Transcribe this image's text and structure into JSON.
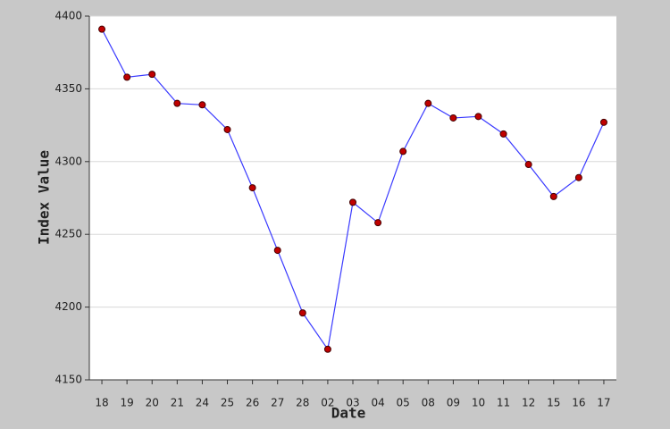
{
  "chart_data": {
    "type": "line",
    "x_label": "Date",
    "y_label": "Index Value",
    "categories": [
      "18",
      "19",
      "20",
      "21",
      "24",
      "25",
      "26",
      "27",
      "28",
      "02",
      "03",
      "04",
      "05",
      "08",
      "09",
      "10",
      "11",
      "12",
      "15",
      "16",
      "17"
    ],
    "values": [
      4391,
      4358,
      4360,
      4340,
      4339,
      4322,
      4282,
      4239,
      4196,
      4171,
      4272,
      4258,
      4307,
      4340,
      4330,
      4331,
      4319,
      4298,
      4276,
      4289,
      4327
    ],
    "color": "#3a3aff",
    "marker_color": "#c00000",
    "ylim": [
      4150,
      4400
    ],
    "yticks": [
      4150,
      4200,
      4250,
      4300,
      4350,
      4400
    ],
    "grid": true
  }
}
